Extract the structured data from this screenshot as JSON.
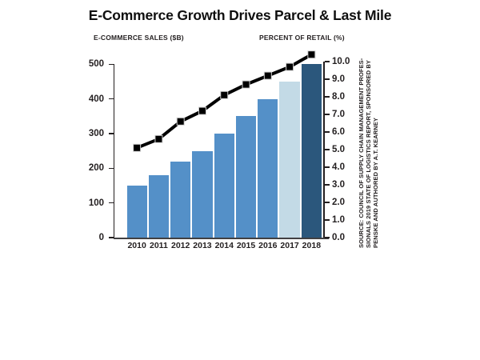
{
  "title": "E-Commerce Growth Drives Parcel & Last Mile",
  "left_axis_header": "E-COMMERCE SALES ($B)",
  "right_axis_header": "PERCENT OF RETAIL (%)",
  "source_note": {
    "lines": [
      "SOURCE: COUNCIL OF SUPPLY CHAIN MANAGEMENT PROFES-",
      "SIONALS 2019 STATE OF LOGISTICS REPORT, SPONSORED BY",
      "PENSKE AND AUTHORED BY A.T. KEARNEY"
    ]
  },
  "chart_data": {
    "type": "bar",
    "subtype": "combo-bar-line-dual-axis",
    "categories": [
      "2010",
      "2011",
      "2012",
      "2013",
      "2014",
      "2015",
      "2016",
      "2017",
      "2018"
    ],
    "series": [
      {
        "name": "E-Commerce Sales ($B)",
        "type": "bar",
        "axis": "left",
        "values": [
          150,
          180,
          220,
          250,
          300,
          350,
          400,
          450,
          500
        ]
      },
      {
        "name": "Percent of Retail (%)",
        "type": "line",
        "axis": "right",
        "values": [
          5.1,
          5.6,
          6.6,
          7.2,
          8.1,
          8.7,
          9.2,
          9.7,
          10.4
        ]
      }
    ],
    "left_axis": {
      "label": "E-COMMERCE SALES ($B)",
      "min": 0,
      "max": 500,
      "step": 100,
      "ticks": [
        "0",
        "100",
        "200",
        "300",
        "400",
        "500"
      ]
    },
    "right_axis": {
      "label": "PERCENT OF RETAIL (%)",
      "min": 0.0,
      "max": 10.0,
      "step": 1.0,
      "ticks": [
        "0.0",
        "1.0",
        "2.0",
        "3.0",
        "4.0",
        "5.0",
        "6.0",
        "7.0",
        "8.0",
        "9.0",
        "10.0"
      ]
    },
    "grid": false,
    "legend": "none",
    "colors": {
      "bar_default": "#5490C8",
      "bar_2017_highlight": "#C3DAE6",
      "bar_2018_highlight": "#2B577C",
      "line": "#000000",
      "marker_outline": "#D0D0D0",
      "axis_text": "#231F20",
      "baseline": "#414042"
    },
    "bar_colors": [
      "#5490C8",
      "#5490C8",
      "#5490C8",
      "#5490C8",
      "#5490C8",
      "#5490C8",
      "#5490C8",
      "#C3DAE6",
      "#2B577C"
    ]
  }
}
